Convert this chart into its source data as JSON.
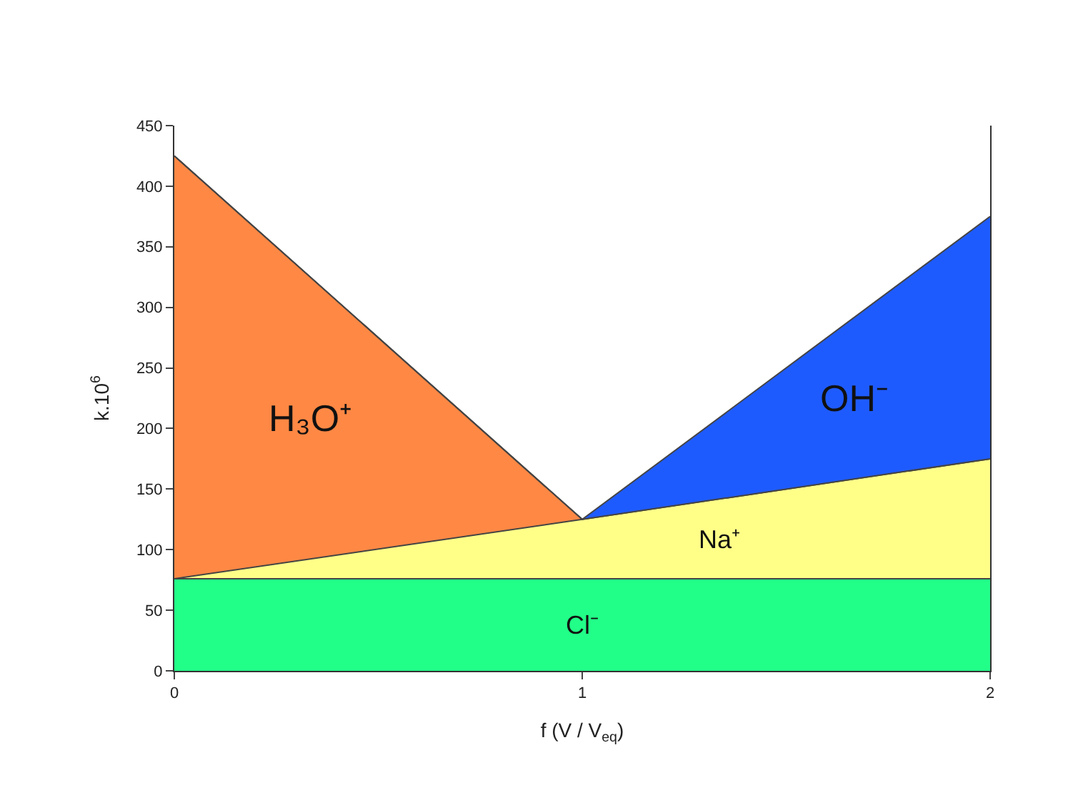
{
  "chart_data": {
    "type": "area",
    "stacked": true,
    "xlabel": "f (V / V$_{eq}$)",
    "ylabel": "k.10$^{6}$",
    "x": [
      0,
      1,
      2
    ],
    "series": [
      {
        "name": "Cl⁻",
        "color": "#22ff88",
        "values": [
          76,
          76,
          76
        ]
      },
      {
        "name": "Na⁺",
        "color": "#ffff88",
        "values": [
          0,
          49,
          99
        ]
      },
      {
        "name": "H₃O⁺",
        "color": "#ff8844",
        "values": [
          349,
          0,
          0
        ]
      },
      {
        "name": "OH⁻",
        "color": "#1e5bff",
        "values": [
          0,
          0,
          200
        ]
      }
    ],
    "xlim": [
      0,
      2
    ],
    "xticks": [
      0,
      1,
      2
    ],
    "ylim": [
      0,
      450
    ],
    "yticks": [
      0,
      50,
      100,
      150,
      200,
      250,
      300,
      350,
      400,
      450
    ]
  }
}
